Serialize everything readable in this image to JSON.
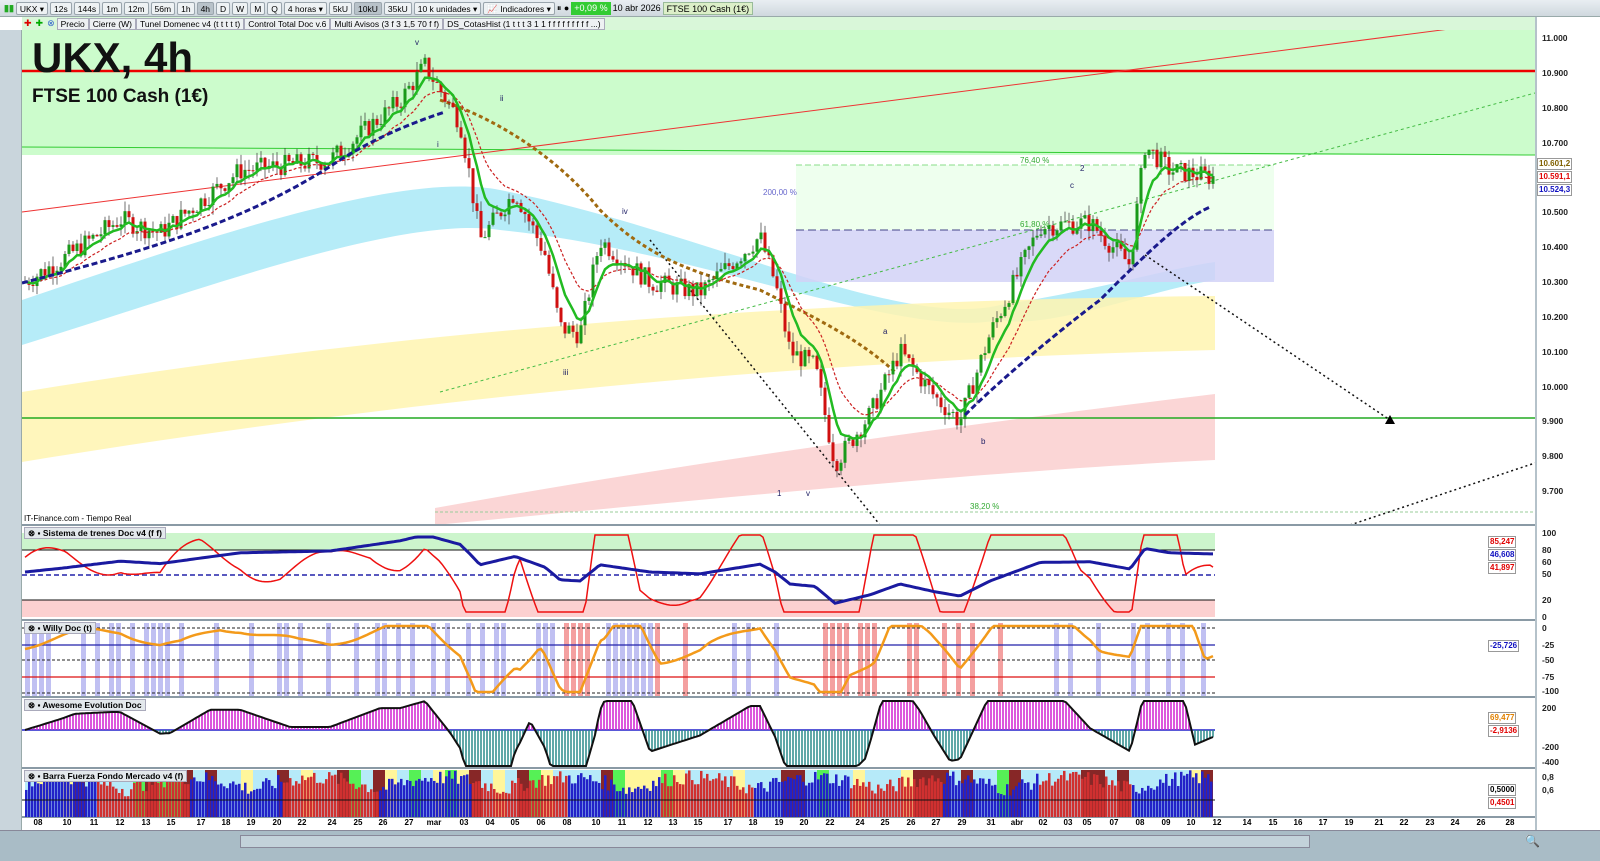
{
  "toolbar": {
    "symbol": "UKX",
    "timeframes": [
      "12s",
      "144s",
      "1m",
      "12m",
      "56m",
      "1h",
      "4h",
      "D",
      "W",
      "M",
      "Q"
    ],
    "active_timeframe": "4h",
    "period": "4 horas",
    "units_buttons": [
      "5kU",
      "10kU",
      "35kU"
    ],
    "active_units": "10kU",
    "units": "10 k unidades",
    "indicators": "Indicadores",
    "change": "+0,09 %",
    "date": "10 abr 2026",
    "instrument": "FTSE 100 Cash (1€)"
  },
  "indicator_tabs": [
    "Precio",
    "Cierre (W)",
    "Tunel Domenec v4 (t t t t t)",
    "Control Total Doc v.6",
    "Multi Avisos (3 f 3 1,5 70 f f)",
    "DS_CotasHist (1 t t t 3 1 1 f f f f f f f f f ...)"
  ],
  "chart": {
    "title": "UKX, 4h",
    "subtitle": "FTSE 100 Cash (1€)",
    "source": "IT-Finance.com - Tiempo Real",
    "price_ticks": [
      "11.000",
      "10.900",
      "10.800",
      "10.700",
      "10.500",
      "10.400",
      "10.300",
      "10.200",
      "10.100",
      "10.000",
      "9.900",
      "9.800",
      "9.700"
    ],
    "price_tags": [
      {
        "text": "10.601,2",
        "color": "#806000"
      },
      {
        "text": "10.591,1",
        "color": "#e00000"
      },
      {
        "text": "10.524,3",
        "color": "#1010c0"
      }
    ],
    "fibo": [
      "76,40 %",
      "61,80 %",
      "200,00 %",
      "38,20 %"
    ],
    "waves": [
      "v",
      "ii",
      "i",
      "iv",
      "iii",
      "1",
      "v",
      "a",
      "b",
      "c",
      "2"
    ]
  },
  "panels": [
    {
      "name": "Sistema de trenes Doc v4 (f f)",
      "ticks": [
        "100",
        "80",
        "60",
        "50",
        "20",
        "0"
      ],
      "tags": [
        {
          "text": "85,247",
          "color": "#e00000"
        },
        {
          "text": "46,608",
          "color": "#1010c0"
        },
        {
          "text": "41,897",
          "color": "#e00000"
        }
      ]
    },
    {
      "name": "Willy Doc (t)",
      "ticks": [
        "0",
        "-25",
        "-50",
        "-75",
        "-100"
      ],
      "tags": [
        {
          "text": "-25,726",
          "color": "#1010c0"
        }
      ]
    },
    {
      "name": "Awesome Evolution Doc",
      "ticks": [
        "200",
        "-200",
        "-400"
      ],
      "tags": [
        {
          "text": "69,477",
          "color": "#e08000"
        },
        {
          "text": "-2,9136",
          "color": "#e00000"
        }
      ]
    },
    {
      "name": "Barra Fuerza Fondo Mercado v4 (f)",
      "ticks": [
        "0,8",
        "0,6"
      ],
      "tags": [
        {
          "text": "0,5000",
          "color": "#000"
        },
        {
          "text": "0,4501",
          "color": "#e00000"
        }
      ]
    }
  ],
  "dates": [
    "08",
    "10",
    "11",
    "12",
    "13",
    "15",
    "17",
    "18",
    "19",
    "20",
    "22",
    "24",
    "25",
    "26",
    "27",
    "mar",
    "03",
    "04",
    "05",
    "06",
    "08",
    "10",
    "11",
    "12",
    "13",
    "15",
    "17",
    "18",
    "19",
    "20",
    "22",
    "24",
    "25",
    "26",
    "27",
    "29",
    "31",
    "abr",
    "02",
    "03",
    "05",
    "07",
    "08",
    "09",
    "10",
    "12",
    "14",
    "15",
    "16",
    "17",
    "19",
    "21",
    "22",
    "23",
    "24",
    "26",
    "28"
  ],
  "colors": {
    "up": "#1a9a1a",
    "down": "#d01010",
    "ma_fast": "#22bb22",
    "ma_slow": "#1a1a8c"
  }
}
